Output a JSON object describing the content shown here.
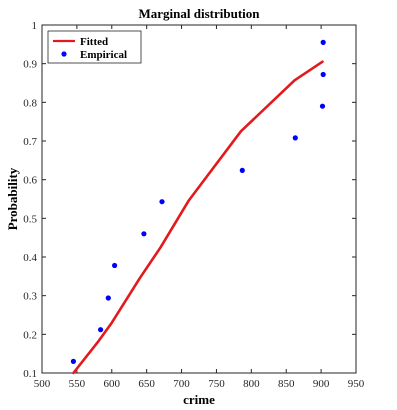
{
  "chart_data": {
    "type": "line",
    "title": "Marginal distribution",
    "xlabel": "crime",
    "ylabel": "Probability",
    "xlim": [
      500,
      950
    ],
    "ylim": [
      0.1,
      1.0
    ],
    "xticks": [
      500,
      550,
      600,
      650,
      700,
      750,
      800,
      850,
      900,
      950
    ],
    "xtick_labels": [
      "500",
      "550",
      "600",
      "650",
      "700",
      "750",
      "800",
      "850",
      "900",
      "950"
    ],
    "yticks": [
      0.1,
      0.2,
      0.3,
      0.4,
      0.5,
      0.6,
      0.7,
      0.8,
      0.9,
      1.0
    ],
    "ytick_labels": [
      "0.1",
      "0.2",
      "0.3",
      "0.4",
      "0.5",
      "0.6",
      "0.7",
      "0.8",
      "0.9",
      "1"
    ],
    "grid": false,
    "legend_position": "top-left",
    "series": [
      {
        "name": "Fitted",
        "style": "line",
        "color": "#e31a1c",
        "x": [
          545,
          580,
          600,
          640,
          670,
          710,
          785,
          862,
          902
        ],
        "y": [
          0.1,
          0.18,
          0.23,
          0.345,
          0.425,
          0.545,
          0.725,
          0.857,
          0.905
        ]
      },
      {
        "name": "Empirical",
        "style": "scatter",
        "color": "#0000ff",
        "x": [
          545,
          584,
          595,
          604,
          646,
          672,
          787,
          863,
          902,
          903,
          903
        ],
        "y": [
          0.13,
          0.212,
          0.294,
          0.378,
          0.46,
          0.543,
          0.624,
          0.708,
          0.79,
          0.872,
          0.955
        ]
      }
    ]
  }
}
